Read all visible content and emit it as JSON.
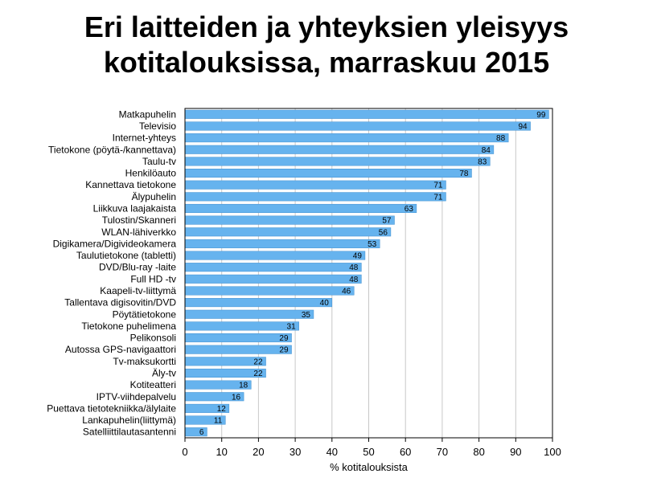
{
  "chart_data": {
    "type": "bar",
    "orientation": "horizontal",
    "title_lines": [
      "Eri laitteiden ja yhteyksien yleisyys",
      "kotitalouksissa, marraskuu 2015"
    ],
    "categories": [
      "Matkapuhelin",
      "Televisio",
      "Internet-yhteys",
      "Tietokone (pöytä-/kannettava)",
      "Taulu-tv",
      "Henkilöauto",
      "Kannettava tietokone",
      "Älypuhelin",
      "Liikkuva laajakaista",
      "Tulostin/Skanneri",
      "WLAN-lähiverkko",
      "Digikamera/Digivideokamera",
      "Taulutietokone (tabletti)",
      "DVD/Blu-ray -laite",
      "Full HD -tv",
      "Kaapeli-tv-liittymä",
      "Tallentava digisovitin/DVD",
      "Pöytätietokone",
      "Tietokone puhelimena",
      "Pelikonsoli",
      "Autossa GPS-navigaattori",
      "Tv-maksukortti",
      "Äly-tv",
      "Kotiteatteri",
      "IPTV-viihdepalvelu",
      "Puettava tietotekniikka/älylaite",
      "Lankapuhelin(liittymä)",
      "Satelliittilautasantenni"
    ],
    "values": [
      99,
      94,
      88,
      84,
      83,
      78,
      71,
      71,
      63,
      57,
      56,
      53,
      49,
      48,
      48,
      46,
      40,
      35,
      31,
      29,
      29,
      22,
      22,
      18,
      16,
      12,
      11,
      6
    ],
    "xlabel": "% kotitalouksista",
    "xlim": [
      0,
      100
    ],
    "xticks": [
      0,
      10,
      20,
      30,
      40,
      50,
      60,
      70,
      80,
      90,
      100
    ],
    "grid": true,
    "bar_color": "#66b3ee",
    "grid_color": "#c8c8c8"
  }
}
